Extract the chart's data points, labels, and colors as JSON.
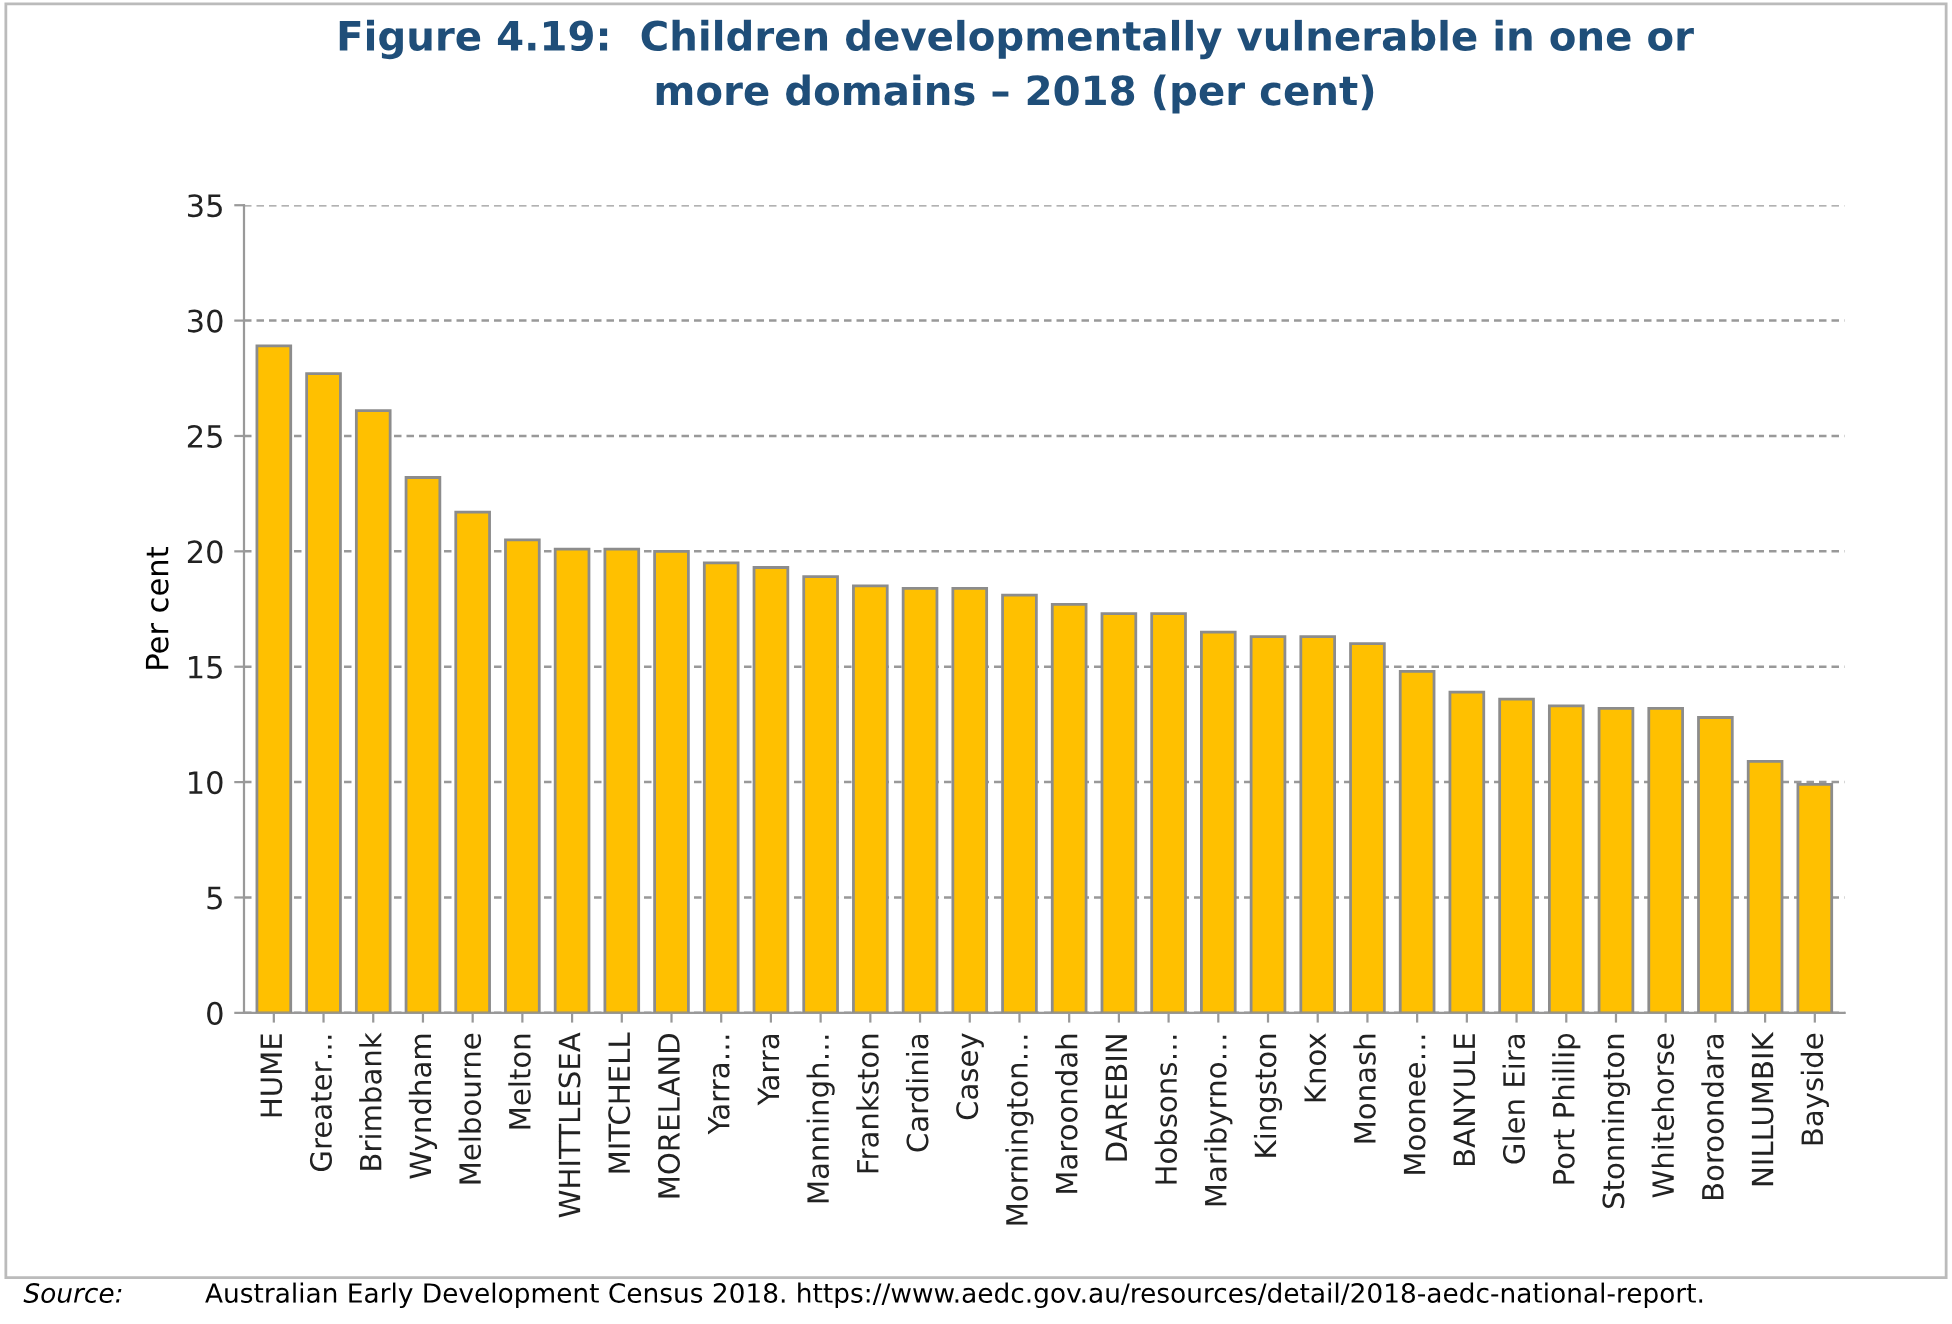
{
  "chart_data": {
    "type": "bar",
    "title": "Figure 4.19:  Children developmentally vulnerable in one or\nmore domains – 2018 (per cent)",
    "ylabel": "Per cent",
    "categories": [
      "HUME",
      "Greater…",
      "Brimbank",
      "Wyndham",
      "Melbourne",
      "Melton",
      "WHITTLESEA",
      "MITCHELL",
      "MORELAND",
      "Yarra…",
      "Yarra",
      "Manningh…",
      "Frankston",
      "Cardinia",
      "Casey",
      "Mornington…",
      "Maroondah",
      "DAREBIN",
      "Hobsons…",
      "Maribyrno…",
      "Kingston",
      "Knox",
      "Monash",
      "Moonee…",
      "BANYULE",
      "Glen Eira",
      "Port Phillip",
      "Stonnington",
      "Whitehorse",
      "Boroondara",
      "NILLUMBIK",
      "Bayside"
    ],
    "values": [
      28.9,
      27.7,
      26.1,
      23.2,
      21.7,
      20.5,
      20.1,
      20.1,
      20.0,
      19.5,
      19.3,
      18.9,
      18.5,
      18.4,
      18.4,
      18.1,
      17.7,
      17.3,
      17.3,
      16.5,
      16.3,
      16.3,
      16.0,
      14.8,
      13.9,
      13.6,
      13.3,
      13.2,
      13.2,
      12.8,
      10.9,
      9.9
    ],
    "color": "#ffc000",
    "ylim": [
      0,
      35
    ],
    "yticks": [
      0,
      5,
      10,
      15,
      20,
      25,
      30,
      35
    ],
    "grid": "y",
    "legend": false,
    "annotations": [
      "Source:",
      "Australian Early Development Census 2018. https://www.aedc.gov.au/resources/detail/2018-aedc-national-report."
    ]
  }
}
